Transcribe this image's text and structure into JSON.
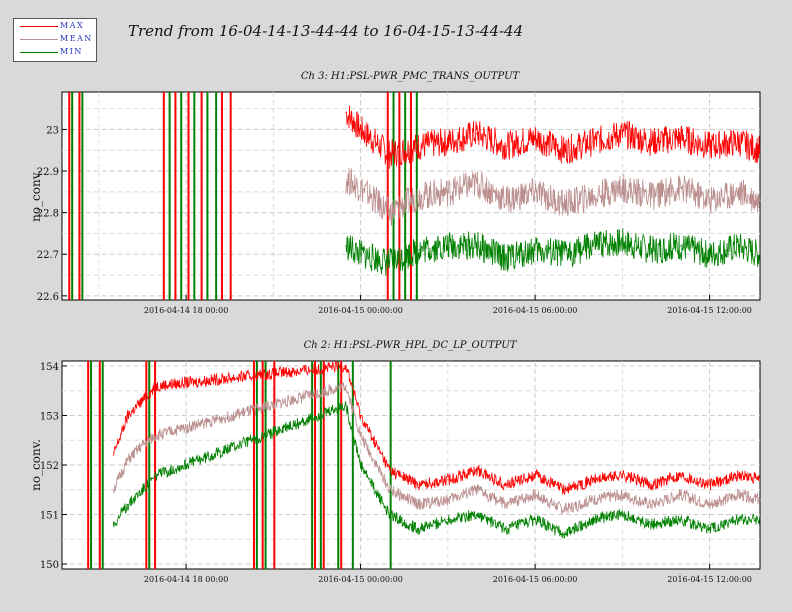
{
  "page_title": "Trend from 16-04-14-13-44-44 to 16-04-15-13-44-44",
  "legend": [
    {
      "label": "MAX",
      "color": "#ff0000"
    },
    {
      "label": "MEAN",
      "color": "#bc8f8f"
    },
    {
      "label": "MIN",
      "color": "#008000"
    }
  ],
  "chart_data": [
    {
      "type": "line",
      "title": "Ch 3: H1:PSL-PWR_PMC_TRANS_OUTPUT",
      "xlabel": "",
      "ylabel": "no_conv.",
      "xlim": [
        "2016-04-14 13:44:44",
        "2016-04-15 13:44:44"
      ],
      "ylim": [
        22.59,
        23.09
      ],
      "yticks": [
        22.6,
        22.7,
        22.8,
        22.9,
        23.0
      ],
      "ytick_labels": [
        "22.6",
        "22.7",
        "22.8",
        "22.9",
        "23"
      ],
      "xticks": [
        "2016-04-14 18:00:00",
        "2016-04-15 00:00:00",
        "2016-04-15 06:00:00",
        "2016-04-15 12:00:00"
      ],
      "xtick_labels": [
        "2016-04-14 18 00:00",
        "2016-04-15 00:00:00",
        "2016-04-15 06:00:00",
        "2016-04-15 12:00:00"
      ],
      "grid": true,
      "series": [
        {
          "name": "MAX",
          "color": "#ff0000",
          "x": [
            "2016-04-14 23:30",
            "2016-04-15 00:00",
            "2016-04-15 01:00",
            "2016-04-15 02:00",
            "2016-04-15 03:00",
            "2016-04-15 04:00",
            "2016-04-15 05:00",
            "2016-04-15 06:00",
            "2016-04-15 07:00",
            "2016-04-15 08:00",
            "2016-04-15 09:00",
            "2016-04-15 10:00",
            "2016-04-15 11:00",
            "2016-04-15 12:00",
            "2016-04-15 13:00",
            "2016-04-15 13:44"
          ],
          "values": [
            23.04,
            23.0,
            22.94,
            22.96,
            22.97,
            22.99,
            22.96,
            22.98,
            22.95,
            22.97,
            22.99,
            22.97,
            22.98,
            22.96,
            22.97,
            22.95
          ]
        },
        {
          "name": "MEAN",
          "color": "#bc8f8f",
          "x": [
            "2016-04-14 23:30",
            "2016-04-15 00:00",
            "2016-04-15 01:00",
            "2016-04-15 02:00",
            "2016-04-15 03:00",
            "2016-04-15 04:00",
            "2016-04-15 05:00",
            "2016-04-15 06:00",
            "2016-04-15 07:00",
            "2016-04-15 08:00",
            "2016-04-15 09:00",
            "2016-04-15 10:00",
            "2016-04-15 11:00",
            "2016-04-15 12:00",
            "2016-04-15 13:00",
            "2016-04-15 13:44"
          ],
          "values": [
            22.88,
            22.86,
            22.8,
            22.84,
            22.85,
            22.87,
            22.83,
            22.85,
            22.82,
            22.84,
            22.86,
            22.84,
            22.86,
            22.83,
            22.85,
            22.83
          ]
        },
        {
          "name": "MIN",
          "color": "#008000",
          "x": [
            "2016-04-14 23:30",
            "2016-04-15 00:00",
            "2016-04-15 01:00",
            "2016-04-15 02:00",
            "2016-04-15 03:00",
            "2016-04-15 04:00",
            "2016-04-15 05:00",
            "2016-04-15 06:00",
            "2016-04-15 07:00",
            "2016-04-15 08:00",
            "2016-04-15 09:00",
            "2016-04-15 10:00",
            "2016-04-15 11:00",
            "2016-04-15 12:00",
            "2016-04-15 13:00",
            "2016-04-15 13:44"
          ],
          "values": [
            22.72,
            22.7,
            22.68,
            22.71,
            22.72,
            22.72,
            22.69,
            22.71,
            22.7,
            22.72,
            22.73,
            22.71,
            22.72,
            22.7,
            22.72,
            22.7
          ]
        }
      ]
    },
    {
      "type": "line",
      "title": "Ch 2: H1:PSL-PWR_HPL_DC_LP_OUTPUT",
      "xlabel": "",
      "ylabel": "no_conv.",
      "xlim": [
        "2016-04-14 13:44:44",
        "2016-04-15 13:44:44"
      ],
      "ylim": [
        149.9,
        154.1
      ],
      "yticks": [
        150,
        151,
        152,
        153,
        154
      ],
      "ytick_labels": [
        "150",
        "151",
        "152",
        "153",
        "154"
      ],
      "xticks": [
        "2016-04-14 18:00:00",
        "2016-04-15 00:00:00",
        "2016-04-15 06:00:00",
        "2016-04-15 12:00:00"
      ],
      "xtick_labels": [
        "2016-04-14 18 00:00",
        "2016-04-15 00:00:00",
        "2016-04-15 06:00:00",
        "2016-04-15 12:00:00"
      ],
      "grid": true,
      "series": [
        {
          "name": "MAX",
          "color": "#ff0000",
          "x": [
            "2016-04-14 15:30",
            "2016-04-14 16:00",
            "2016-04-14 16:30",
            "2016-04-14 17:00",
            "2016-04-14 23:30",
            "2016-04-15 00:00",
            "2016-04-15 01:00",
            "2016-04-15 02:00",
            "2016-04-15 03:00",
            "2016-04-15 04:00",
            "2016-04-15 05:00",
            "2016-04-15 06:00",
            "2016-04-15 07:00",
            "2016-04-15 08:00",
            "2016-04-15 09:00",
            "2016-04-15 10:00",
            "2016-04-15 11:00",
            "2016-04-15 12:00",
            "2016-04-15 13:00",
            "2016-04-15 13:44"
          ],
          "values": [
            152.2,
            153.0,
            153.3,
            153.6,
            154.0,
            153.0,
            151.9,
            151.6,
            151.7,
            151.9,
            151.6,
            151.8,
            151.5,
            151.7,
            151.8,
            151.6,
            151.8,
            151.6,
            151.8,
            151.7
          ]
        },
        {
          "name": "MEAN",
          "color": "#bc8f8f",
          "x": [
            "2016-04-14 15:30",
            "2016-04-14 16:00",
            "2016-04-14 16:30",
            "2016-04-14 17:00",
            "2016-04-14 23:30",
            "2016-04-15 00:00",
            "2016-04-15 01:00",
            "2016-04-15 02:00",
            "2016-04-15 03:00",
            "2016-04-15 04:00",
            "2016-04-15 05:00",
            "2016-04-15 06:00",
            "2016-04-15 07:00",
            "2016-04-15 08:00",
            "2016-04-15 09:00",
            "2016-04-15 10:00",
            "2016-04-15 11:00",
            "2016-04-15 12:00",
            "2016-04-15 13:00",
            "2016-04-15 13:44"
          ],
          "values": [
            151.5,
            152.1,
            152.4,
            152.6,
            153.6,
            152.6,
            151.5,
            151.2,
            151.3,
            151.5,
            151.2,
            151.4,
            151.1,
            151.3,
            151.4,
            151.2,
            151.4,
            151.2,
            151.4,
            151.3
          ]
        },
        {
          "name": "MIN",
          "color": "#008000",
          "x": [
            "2016-04-14 15:30",
            "2016-04-14 16:00",
            "2016-04-14 16:30",
            "2016-04-14 17:00",
            "2016-04-14 23:30",
            "2016-04-15 00:00",
            "2016-04-15 01:00",
            "2016-04-15 02:00",
            "2016-04-15 03:00",
            "2016-04-15 04:00",
            "2016-04-15 05:00",
            "2016-04-15 06:00",
            "2016-04-15 07:00",
            "2016-04-15 08:00",
            "2016-04-15 09:00",
            "2016-04-15 10:00",
            "2016-04-15 11:00",
            "2016-04-15 12:00",
            "2016-04-15 13:00",
            "2016-04-15 13:44"
          ],
          "values": [
            150.8,
            151.2,
            151.5,
            151.8,
            153.2,
            152.0,
            151.0,
            150.7,
            150.9,
            151.0,
            150.7,
            150.9,
            150.6,
            150.9,
            151.0,
            150.8,
            150.9,
            150.7,
            150.9,
            150.9
          ]
        }
      ]
    }
  ]
}
